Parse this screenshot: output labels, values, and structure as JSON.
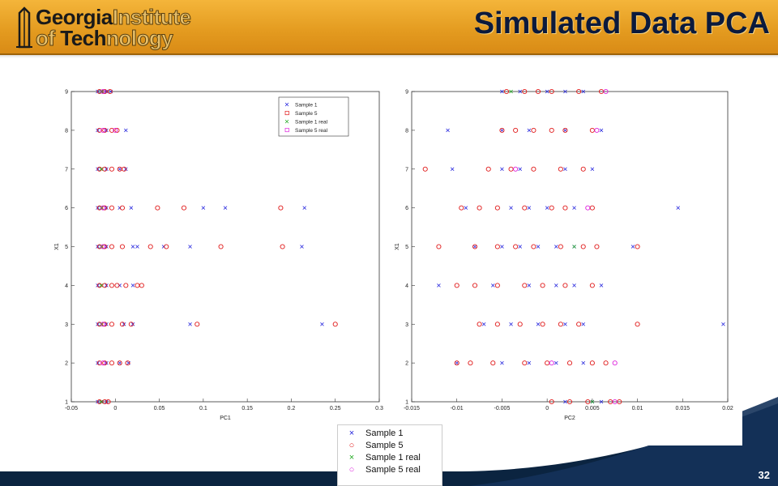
{
  "header": {
    "logo_line1_bold": "Georgia",
    "logo_line1_light": "Institute",
    "logo_line2_light": "of ",
    "logo_line2_bold": "Tech",
    "logo_line2_rest": "nology",
    "title": "Simulated Data PCA"
  },
  "page_number": "32",
  "colors": {
    "sample1": "#2222dd",
    "sample5": "#e01818",
    "sample1_real": "#22aa22",
    "sample5_real": "#dd22dd",
    "header": "#e8a22a",
    "title": "#0b1a3d"
  },
  "legend": {
    "items": [
      {
        "label": "Sample 1",
        "marker": "x"
      },
      {
        "label": "Sample 5",
        "marker": "o"
      },
      {
        "label": "Sample 1 real",
        "marker": "x"
      },
      {
        "label": "Sample 5 real",
        "marker": "o"
      }
    ]
  },
  "chart_data": [
    {
      "type": "scatter",
      "title": "",
      "xlabel": "PC1",
      "ylabel": "X1",
      "xlim": [
        -0.05,
        0.3
      ],
      "ylim": [
        1,
        9
      ],
      "xticks": [
        "-0.05",
        "0",
        "0.05",
        "0.1",
        "0.15",
        "0.2",
        "0.25",
        "0.3"
      ],
      "yticks": [
        "1",
        "2",
        "3",
        "4",
        "5",
        "6",
        "7",
        "8",
        "9"
      ],
      "legend_position": "top-right",
      "series": [
        {
          "name": "Sample 1",
          "marker": "x",
          "points": [
            [
              -0.02,
              9
            ],
            [
              -0.015,
              9
            ],
            [
              -0.01,
              9
            ],
            [
              -0.005,
              9
            ],
            [
              -0.02,
              8
            ],
            [
              -0.01,
              8
            ],
            [
              0.012,
              8
            ],
            [
              -0.02,
              7
            ],
            [
              -0.01,
              7
            ],
            [
              0.005,
              7
            ],
            [
              0.012,
              7
            ],
            [
              -0.02,
              6
            ],
            [
              -0.01,
              6
            ],
            [
              0.005,
              6
            ],
            [
              0.018,
              6
            ],
            [
              0.1,
              6
            ],
            [
              0.125,
              6
            ],
            [
              0.215,
              6
            ],
            [
              -0.02,
              5
            ],
            [
              -0.01,
              5
            ],
            [
              0.02,
              5
            ],
            [
              0.025,
              5
            ],
            [
              0.055,
              5
            ],
            [
              0.085,
              5
            ],
            [
              0.212,
              5
            ],
            [
              -0.02,
              4
            ],
            [
              -0.01,
              4
            ],
            [
              0.005,
              4
            ],
            [
              0.02,
              4
            ],
            [
              -0.02,
              3
            ],
            [
              -0.01,
              3
            ],
            [
              0.01,
              3
            ],
            [
              0.02,
              3
            ],
            [
              0.085,
              3
            ],
            [
              0.235,
              3
            ],
            [
              -0.02,
              2
            ],
            [
              -0.01,
              2
            ],
            [
              0.005,
              2
            ],
            [
              0.015,
              2
            ],
            [
              -0.02,
              1
            ],
            [
              -0.015,
              1
            ],
            [
              -0.01,
              1
            ]
          ]
        },
        {
          "name": "Sample 5",
          "marker": "o",
          "points": [
            [
              -0.018,
              9
            ],
            [
              -0.012,
              9
            ],
            [
              -0.006,
              9
            ],
            [
              -0.018,
              8
            ],
            [
              -0.012,
              8
            ],
            [
              -0.004,
              8
            ],
            [
              0.002,
              8
            ],
            [
              -0.018,
              7
            ],
            [
              -0.012,
              7
            ],
            [
              -0.004,
              7
            ],
            [
              0.005,
              7
            ],
            [
              0.01,
              7
            ],
            [
              -0.018,
              6
            ],
            [
              -0.012,
              6
            ],
            [
              -0.004,
              6
            ],
            [
              0.008,
              6
            ],
            [
              0.048,
              6
            ],
            [
              0.078,
              6
            ],
            [
              0.188,
              6
            ],
            [
              -0.018,
              5
            ],
            [
              -0.012,
              5
            ],
            [
              -0.004,
              5
            ],
            [
              0.008,
              5
            ],
            [
              0.04,
              5
            ],
            [
              0.058,
              5
            ],
            [
              0.12,
              5
            ],
            [
              0.19,
              5
            ],
            [
              -0.018,
              4
            ],
            [
              -0.012,
              4
            ],
            [
              -0.004,
              4
            ],
            [
              0.002,
              4
            ],
            [
              0.012,
              4
            ],
            [
              0.025,
              4
            ],
            [
              0.03,
              4
            ],
            [
              -0.018,
              3
            ],
            [
              -0.012,
              3
            ],
            [
              -0.004,
              3
            ],
            [
              0.008,
              3
            ],
            [
              0.018,
              3
            ],
            [
              0.093,
              3
            ],
            [
              0.25,
              3
            ],
            [
              -0.018,
              2
            ],
            [
              -0.012,
              2
            ],
            [
              -0.004,
              2
            ],
            [
              0.005,
              2
            ],
            [
              0.014,
              2
            ],
            [
              -0.018,
              1
            ],
            [
              -0.012,
              1
            ],
            [
              -0.008,
              1
            ]
          ]
        },
        {
          "name": "Sample 1 real",
          "marker": "x",
          "points": [
            [
              -0.016,
              9
            ],
            [
              -0.016,
              7
            ],
            [
              -0.016,
              6
            ],
            [
              -0.016,
              5
            ],
            [
              -0.016,
              4
            ],
            [
              -0.016,
              3
            ],
            [
              -0.016,
              1
            ]
          ]
        },
        {
          "name": "Sample 5 real",
          "marker": "o",
          "points": [
            [
              -0.014,
              9
            ],
            [
              -0.014,
              8
            ],
            [
              0.0,
              8
            ],
            [
              -0.014,
              6
            ],
            [
              -0.014,
              5
            ],
            [
              -0.014,
              3
            ],
            [
              -0.014,
              2
            ]
          ]
        }
      ]
    },
    {
      "type": "scatter",
      "title": "",
      "xlabel": "PC2",
      "ylabel": "X1",
      "xlim": [
        -0.015,
        0.02
      ],
      "ylim": [
        1,
        9
      ],
      "xticks": [
        "-0.015",
        "-0.01",
        "-0.005",
        "0",
        "0.005",
        "0.01",
        "0.015",
        "0.02"
      ],
      "yticks": [
        "1",
        "2",
        "3",
        "4",
        "5",
        "6",
        "7",
        "8",
        "9"
      ],
      "series": [
        {
          "name": "Sample 1",
          "marker": "x",
          "points": [
            [
              -0.005,
              9
            ],
            [
              -0.003,
              9
            ],
            [
              0.0,
              9
            ],
            [
              0.002,
              9
            ],
            [
              0.004,
              9
            ],
            [
              -0.011,
              8
            ],
            [
              -0.005,
              8
            ],
            [
              -0.002,
              8
            ],
            [
              0.002,
              8
            ],
            [
              0.006,
              8
            ],
            [
              -0.0105,
              7
            ],
            [
              -0.005,
              7
            ],
            [
              -0.003,
              7
            ],
            [
              0.002,
              7
            ],
            [
              0.005,
              7
            ],
            [
              -0.009,
              6
            ],
            [
              -0.004,
              6
            ],
            [
              -0.002,
              6
            ],
            [
              0.0,
              6
            ],
            [
              0.003,
              6
            ],
            [
              0.0145,
              6
            ],
            [
              -0.008,
              5
            ],
            [
              -0.005,
              5
            ],
            [
              -0.003,
              5
            ],
            [
              -0.001,
              5
            ],
            [
              0.001,
              5
            ],
            [
              0.003,
              5
            ],
            [
              0.0095,
              5
            ],
            [
              -0.012,
              4
            ],
            [
              -0.006,
              4
            ],
            [
              -0.002,
              4
            ],
            [
              0.001,
              4
            ],
            [
              0.003,
              4
            ],
            [
              0.006,
              4
            ],
            [
              -0.007,
              3
            ],
            [
              -0.004,
              3
            ],
            [
              -0.001,
              3
            ],
            [
              0.002,
              3
            ],
            [
              0.004,
              3
            ],
            [
              0.0195,
              3
            ],
            [
              -0.01,
              2
            ],
            [
              -0.005,
              2
            ],
            [
              -0.002,
              2
            ],
            [
              0.001,
              2
            ],
            [
              0.004,
              2
            ],
            [
              0.002,
              1
            ],
            [
              0.005,
              1
            ],
            [
              0.006,
              1
            ]
          ]
        },
        {
          "name": "Sample 5",
          "marker": "o",
          "points": [
            [
              -0.0045,
              9
            ],
            [
              -0.0025,
              9
            ],
            [
              -0.001,
              9
            ],
            [
              0.0005,
              9
            ],
            [
              0.0035,
              9
            ],
            [
              0.006,
              9
            ],
            [
              -0.005,
              8
            ],
            [
              -0.0035,
              8
            ],
            [
              -0.0015,
              8
            ],
            [
              0.0005,
              8
            ],
            [
              0.002,
              8
            ],
            [
              0.005,
              8
            ],
            [
              -0.0135,
              7
            ],
            [
              -0.0065,
              7
            ],
            [
              -0.004,
              7
            ],
            [
              -0.0015,
              7
            ],
            [
              0.0015,
              7
            ],
            [
              0.004,
              7
            ],
            [
              -0.0095,
              6
            ],
            [
              -0.0075,
              6
            ],
            [
              -0.0055,
              6
            ],
            [
              -0.0025,
              6
            ],
            [
              0.0005,
              6
            ],
            [
              0.002,
              6
            ],
            [
              0.005,
              6
            ],
            [
              -0.012,
              5
            ],
            [
              -0.008,
              5
            ],
            [
              -0.0055,
              5
            ],
            [
              -0.0035,
              5
            ],
            [
              -0.0015,
              5
            ],
            [
              0.0015,
              5
            ],
            [
              0.004,
              5
            ],
            [
              0.0055,
              5
            ],
            [
              0.01,
              5
            ],
            [
              -0.01,
              4
            ],
            [
              -0.008,
              4
            ],
            [
              -0.0055,
              4
            ],
            [
              -0.0025,
              4
            ],
            [
              -0.0005,
              4
            ],
            [
              0.002,
              4
            ],
            [
              0.005,
              4
            ],
            [
              -0.0075,
              3
            ],
            [
              -0.0055,
              3
            ],
            [
              -0.003,
              3
            ],
            [
              -0.0005,
              3
            ],
            [
              0.0015,
              3
            ],
            [
              0.0035,
              3
            ],
            [
              0.01,
              3
            ],
            [
              -0.01,
              2
            ],
            [
              -0.0085,
              2
            ],
            [
              -0.006,
              2
            ],
            [
              -0.0025,
              2
            ],
            [
              0.0,
              2
            ],
            [
              0.0025,
              2
            ],
            [
              0.005,
              2
            ],
            [
              0.0065,
              2
            ],
            [
              0.0005,
              1
            ],
            [
              0.0025,
              1
            ],
            [
              0.0045,
              1
            ],
            [
              0.007,
              1
            ],
            [
              0.008,
              1
            ]
          ]
        },
        {
          "name": "Sample 1 real",
          "marker": "x",
          "points": [
            [
              -0.004,
              9
            ],
            [
              0.003,
              5
            ],
            [
              0.005,
              1
            ]
          ]
        },
        {
          "name": "Sample 5 real",
          "marker": "o",
          "points": [
            [
              0.0065,
              9
            ],
            [
              0.0055,
              8
            ],
            [
              -0.0035,
              7
            ],
            [
              0.0045,
              6
            ],
            [
              0.0005,
              2
            ],
            [
              0.0075,
              2
            ],
            [
              0.0075,
              1
            ]
          ]
        }
      ]
    }
  ]
}
